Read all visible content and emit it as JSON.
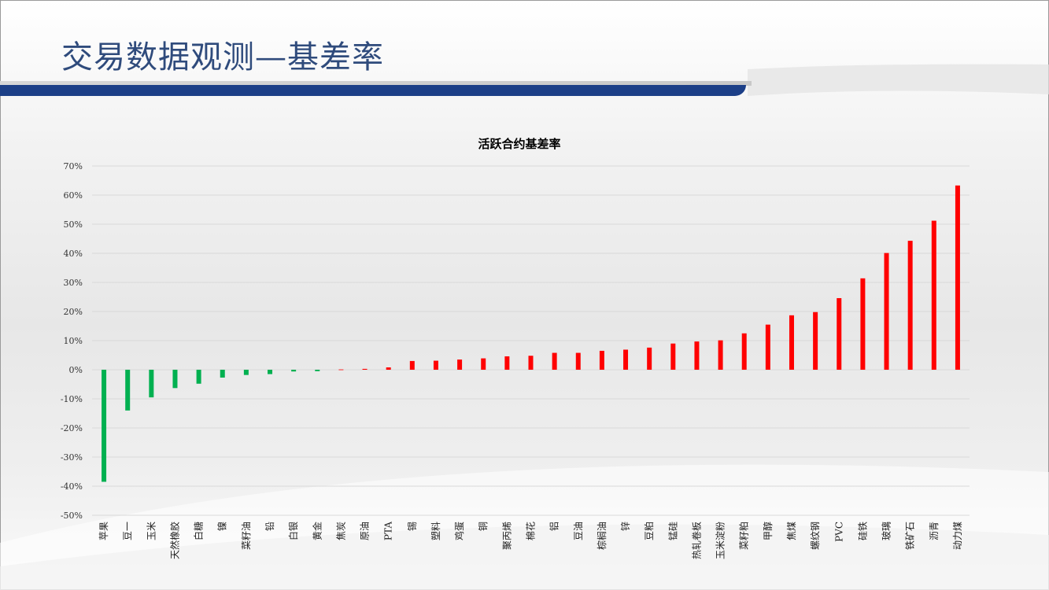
{
  "slide": {
    "title": "交易数据观测—基差率"
  },
  "colors": {
    "positive": "#ff0000",
    "negative": "#00b050",
    "title": "#2f4b7c",
    "band": "#1c3f87"
  },
  "chart_data": {
    "type": "bar",
    "title": "活跃合约基差率",
    "xlabel": "",
    "ylabel": "",
    "ylim": [
      -0.5,
      0.7
    ],
    "yticks": [
      {
        "value": 0.7,
        "label": "70%"
      },
      {
        "value": 0.6,
        "label": "60%"
      },
      {
        "value": 0.5,
        "label": "50%"
      },
      {
        "value": 0.4,
        "label": "40%"
      },
      {
        "value": 0.3,
        "label": "30%"
      },
      {
        "value": 0.2,
        "label": "20%"
      },
      {
        "value": 0.1,
        "label": "10%"
      },
      {
        "value": 0.0,
        "label": "0%"
      },
      {
        "value": -0.1,
        "label": "-10%"
      },
      {
        "value": -0.2,
        "label": "-20%"
      },
      {
        "value": -0.3,
        "label": "-30%"
      },
      {
        "value": -0.4,
        "label": "-40%"
      },
      {
        "value": -0.5,
        "label": "-50%"
      }
    ],
    "grid": true,
    "legend": "none",
    "categories": [
      "苹果",
      "豆一",
      "玉米",
      "天然橡胶",
      "白糖",
      "镍",
      "菜籽油",
      "铅",
      "白银",
      "黄金",
      "焦炭",
      "原油",
      "PTA",
      "锡",
      "塑料",
      "鸡蛋",
      "铜",
      "聚丙烯",
      "棉花",
      "铝",
      "豆油",
      "棕榈油",
      "锌",
      "豆粕",
      "锰硅",
      "热轧卷板",
      "玉米淀粉",
      "菜籽粕",
      "甲醇",
      "焦煤",
      "螺纹钢",
      "PVC",
      "硅铁",
      "玻璃",
      "铁矿石",
      "沥青",
      "动力煤"
    ],
    "values": [
      -0.385,
      -0.14,
      -0.095,
      -0.063,
      -0.048,
      -0.027,
      -0.018,
      -0.015,
      -0.006,
      -0.005,
      0.001,
      0.003,
      0.008,
      0.03,
      0.031,
      0.035,
      0.039,
      0.046,
      0.048,
      0.058,
      0.058,
      0.065,
      0.069,
      0.076,
      0.09,
      0.097,
      0.101,
      0.125,
      0.155,
      0.187,
      0.198,
      0.246,
      0.314,
      0.401,
      0.443,
      0.512,
      0.633
    ]
  }
}
